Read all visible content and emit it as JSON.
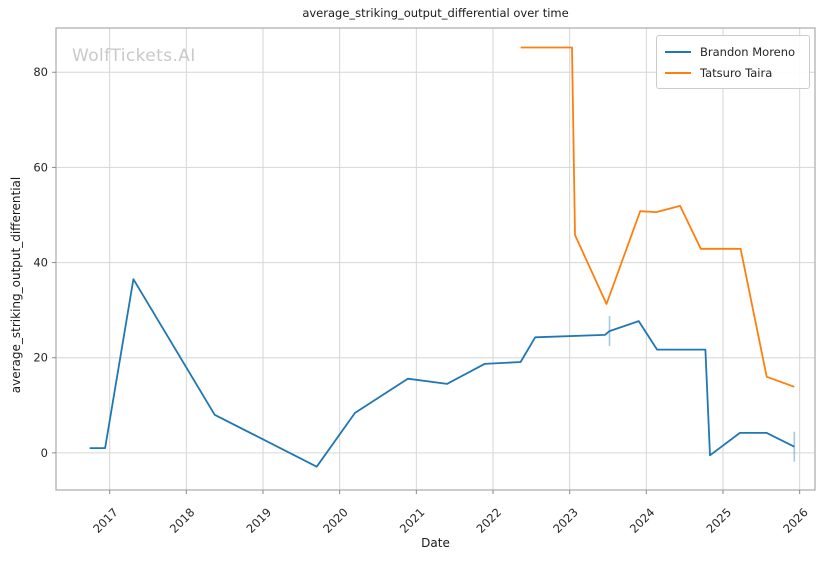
{
  "watermark": "WolfTickets.AI",
  "colors": {
    "background": "#ffffff",
    "grid": "#d6d6d6",
    "spine": "#aaaaaa",
    "tick": "#8a8a8a",
    "text": "#262626",
    "watermark": "#c9c9c9",
    "series_blue": "#1f77b4",
    "series_orange": "#ff7f0e"
  },
  "chart_data": {
    "type": "line",
    "title": "average_striking_output_differential over time",
    "xlabel": "Date",
    "ylabel": "average_striking_output_differential",
    "xlim": [
      2016.3,
      2026.2
    ],
    "ylim": [
      -7.8,
      89.3
    ],
    "x_ticks": [
      2017,
      2018,
      2019,
      2020,
      2021,
      2022,
      2023,
      2024,
      2025,
      2026
    ],
    "y_ticks": [
      0,
      20,
      40,
      60,
      80
    ],
    "grid": true,
    "legend_position": "upper-right",
    "series": [
      {
        "name": "Brandon Moreno",
        "color": "#1f77b4",
        "points": [
          [
            2016.74,
            1.0
          ],
          [
            2016.94,
            1.0
          ],
          [
            2017.31,
            36.5
          ],
          [
            2018.37,
            8.0
          ],
          [
            2019.7,
            -2.9
          ],
          [
            2020.2,
            8.4
          ],
          [
            2020.89,
            15.6
          ],
          [
            2021.4,
            14.5
          ],
          [
            2021.89,
            18.7
          ],
          [
            2022.36,
            19.1
          ],
          [
            2022.55,
            24.3
          ],
          [
            2023.46,
            24.8
          ],
          [
            2023.52,
            25.6
          ],
          [
            2023.9,
            27.7
          ],
          [
            2024.14,
            21.7
          ],
          [
            2024.77,
            21.7
          ],
          [
            2024.83,
            -0.5
          ],
          [
            2025.22,
            4.2
          ],
          [
            2025.57,
            4.2
          ],
          [
            2025.93,
            1.3
          ]
        ]
      },
      {
        "name": "Tatsuro Taira",
        "color": "#ff7f0e",
        "points": [
          [
            2022.36,
            85.2
          ],
          [
            2023.03,
            85.2
          ],
          [
            2023.07,
            45.8
          ],
          [
            2023.48,
            31.3
          ],
          [
            2023.92,
            50.8
          ],
          [
            2024.13,
            50.6
          ],
          [
            2024.44,
            51.9
          ],
          [
            2024.71,
            42.9
          ],
          [
            2025.23,
            42.9
          ],
          [
            2025.57,
            16.0
          ],
          [
            2025.93,
            13.9
          ]
        ]
      }
    ],
    "marker_ticks": [
      {
        "series": 0,
        "x": 2023.52,
        "y": 25.6
      },
      {
        "series": 0,
        "x": 2025.93,
        "y": 1.3
      }
    ]
  }
}
